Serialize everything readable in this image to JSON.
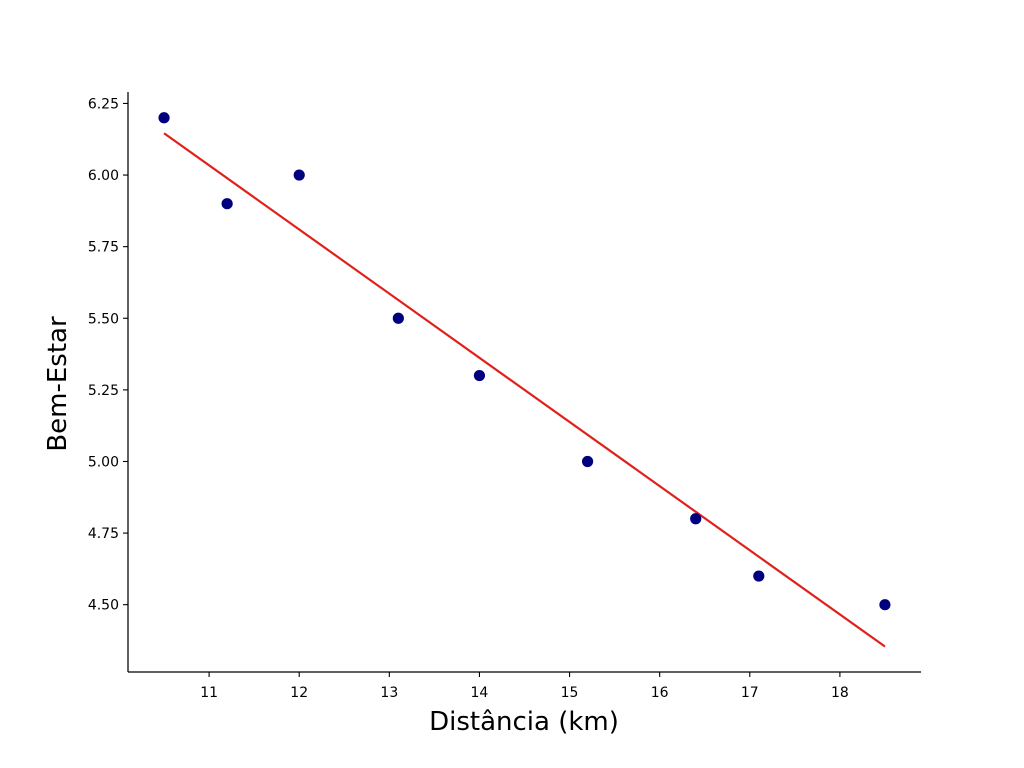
{
  "chart_data": {
    "type": "scatter",
    "title": "",
    "xlabel": "Distância (km)",
    "ylabel": "Bem-Estar",
    "xlim": [
      10.1,
      18.9
    ],
    "ylim": [
      4.265,
      6.29
    ],
    "x_ticks": [
      11,
      12,
      13,
      14,
      15,
      16,
      17,
      18
    ],
    "y_ticks": [
      4.5,
      4.75,
      5.0,
      5.25,
      5.5,
      5.75,
      6.0,
      6.25
    ],
    "y_tick_labels": [
      "4.50",
      "4.75",
      "5.00",
      "5.25",
      "5.50",
      "5.75",
      "6.00",
      "6.25"
    ],
    "grid": false,
    "series": [
      {
        "kind": "scatter",
        "color": "#00007f",
        "points": [
          {
            "x": 10.5,
            "y": 6.2
          },
          {
            "x": 11.2,
            "y": 5.9
          },
          {
            "x": 12.0,
            "y": 6.0
          },
          {
            "x": 13.1,
            "y": 5.5
          },
          {
            "x": 14.0,
            "y": 5.3
          },
          {
            "x": 15.2,
            "y": 5.0
          },
          {
            "x": 16.4,
            "y": 4.8
          },
          {
            "x": 17.1,
            "y": 4.6
          },
          {
            "x": 18.5,
            "y": 4.5
          }
        ]
      },
      {
        "kind": "line",
        "color": "#e0201b",
        "points": [
          {
            "x": 10.5,
            "y": 6.146
          },
          {
            "x": 18.5,
            "y": 4.354
          }
        ]
      }
    ]
  }
}
